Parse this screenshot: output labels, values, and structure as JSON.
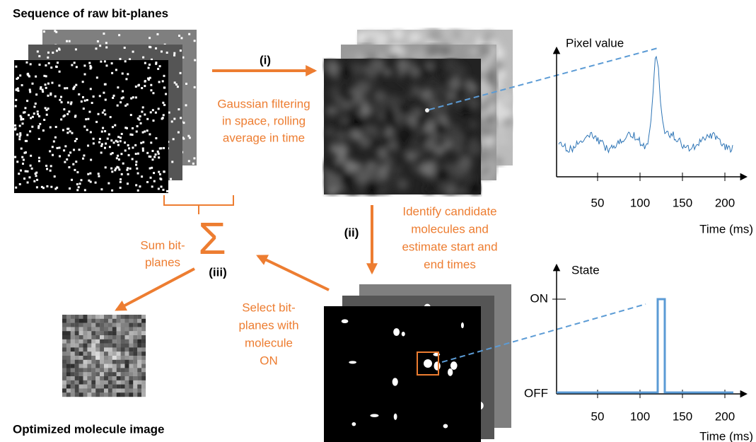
{
  "title_top": "Sequence of raw bit-planes",
  "title_bottom": "Optimized molecule image",
  "step_i": {
    "label": "(i)",
    "lines": [
      "Gaussian filtering",
      "in space, rolling",
      "average in time"
    ]
  },
  "step_ii": {
    "label": "(ii)",
    "lines": [
      "Identify candidate",
      "molecules and",
      "estimate start and",
      "end times"
    ]
  },
  "step_iii": {
    "label": "(iii)",
    "lines": [
      "Select bit-",
      "planes with",
      "molecule",
      "ON"
    ]
  },
  "sum": {
    "symbol": "Σ",
    "lines": [
      "Sum bit-",
      "planes"
    ]
  },
  "plot_pixel": {
    "ylabel": "Pixel value",
    "xlabel": "Time (ms)",
    "xticks": [
      "50",
      "100",
      "150",
      "200"
    ]
  },
  "plot_state": {
    "ylabel": "State",
    "xlabel": "Time (ms)",
    "yticks": [
      "ON",
      "OFF"
    ],
    "xticks": [
      "50",
      "100",
      "150",
      "200"
    ]
  }
}
